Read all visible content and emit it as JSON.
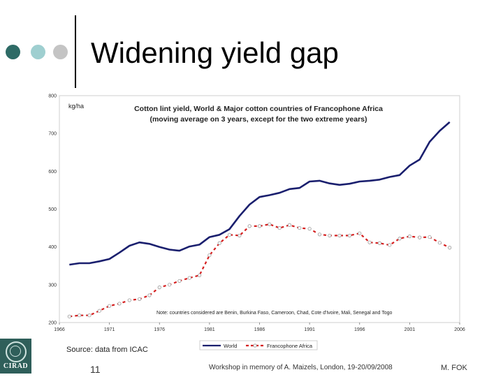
{
  "slide": {
    "title": "Widening yield gap",
    "source": "Source: data from ICAC",
    "slide_number": "11",
    "footer": "Workshop in memory of A. Maizels, London, 19-20/09/2008",
    "author": "M. FOK",
    "logo_text": "CIRAD",
    "decor_colors": [
      "#2e6b66",
      "#9fcfd0",
      "#c4c4c4"
    ]
  },
  "chart_data": {
    "type": "line",
    "title": "Cotton lint yield, World & Major cotton countries of Francophone Africa",
    "subtitle": "(moving average on 3 years, except for the two extreme years)",
    "unit_label": "kg/ha",
    "note": "Note: countries considered are Benin, Burkina Faso, Cameroon, Chad, Cote d'Ivoire, Mali, Senegal and Togo",
    "xlim": [
      1966,
      2006
    ],
    "ylim": [
      200,
      800
    ],
    "x_ticks": [
      1966,
      1971,
      1976,
      1981,
      1986,
      1991,
      1996,
      2001,
      2006
    ],
    "y_ticks": [
      200,
      300,
      400,
      500,
      600,
      700,
      800
    ],
    "legend_position": "bottom",
    "grid": false,
    "x": [
      1967,
      1968,
      1969,
      1970,
      1971,
      1972,
      1973,
      1974,
      1975,
      1976,
      1977,
      1978,
      1979,
      1980,
      1981,
      1982,
      1983,
      1984,
      1985,
      1986,
      1987,
      1988,
      1989,
      1990,
      1991,
      1992,
      1993,
      1994,
      1995,
      1996,
      1997,
      1998,
      1999,
      2000,
      2001,
      2002,
      2003,
      2004,
      2005
    ],
    "series": [
      {
        "name": "World",
        "color": "#1a1f6e",
        "style": "solid",
        "values": [
          353,
          357,
          357,
          362,
          368,
          385,
          403,
          412,
          408,
          400,
          393,
          390,
          401,
          406,
          426,
          432,
          447,
          482,
          512,
          532,
          537,
          543,
          553,
          556,
          573,
          575,
          568,
          564,
          567,
          573,
          575,
          578,
          585,
          590,
          615,
          631,
          678,
          707,
          730
        ]
      },
      {
        "name": "Francophone Africa",
        "color": "#d52020",
        "style": "dashed",
        "values": [
          216,
          219,
          219,
          231,
          244,
          250,
          259,
          262,
          272,
          293,
          300,
          310,
          318,
          325,
          378,
          410,
          432,
          430,
          455,
          455,
          460,
          450,
          458,
          450,
          448,
          433,
          430,
          430,
          430,
          436,
          412,
          410,
          405,
          422,
          428,
          425,
          426,
          411,
          398
        ]
      }
    ]
  }
}
